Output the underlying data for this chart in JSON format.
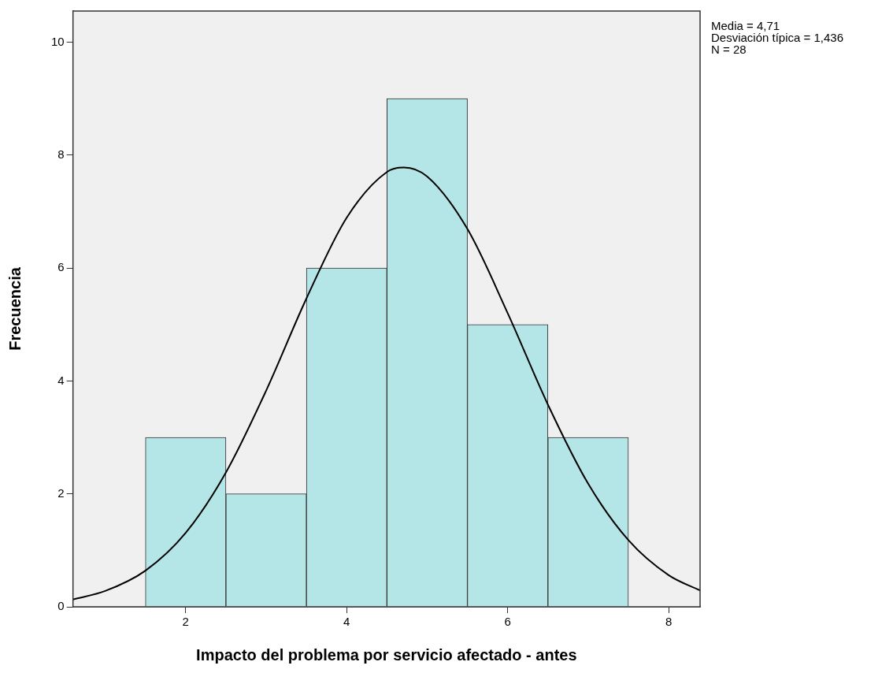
{
  "chart_data": {
    "type": "histogram",
    "xlabel": "Impacto del problema por servicio afectado - antes",
    "ylabel": "Frecuencia",
    "bins": [
      1.5,
      2.5,
      3.5,
      4.5,
      5.5,
      6.5,
      7.5
    ],
    "values": [
      3,
      2,
      6,
      9,
      5,
      3
    ],
    "color": "#b4e6e8",
    "series": [
      {
        "type": "line",
        "color": "#000000",
        "x": [
          0.6,
          1,
          1.5,
          2,
          2.5,
          3,
          3.5,
          4,
          4.5,
          4.71,
          5,
          5.5,
          6,
          6.5,
          7,
          7.5,
          8,
          8.39
        ],
        "values": [
          0.13,
          0.28,
          0.64,
          1.31,
          2.38,
          3.83,
          5.46,
          6.89,
          7.7,
          7.78,
          7.62,
          6.69,
          5.2,
          3.58,
          2.18,
          1.18,
          0.56,
          0.29
        ]
      }
    ],
    "xlim": [
      0.6,
      8.39
    ],
    "ylim": [
      0,
      10.55
    ],
    "xticks": [
      2,
      4,
      6,
      8
    ],
    "yticks": [
      0,
      2,
      4,
      6,
      8,
      10
    ],
    "grid": false,
    "legend": false,
    "marker": "none",
    "annotations": [
      "Media = 4,71",
      "Desviación típica = 1,436",
      "N = 28"
    ]
  }
}
